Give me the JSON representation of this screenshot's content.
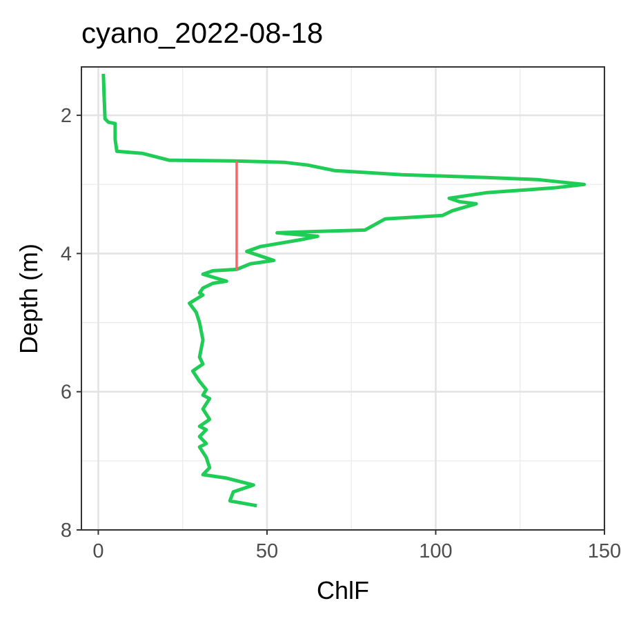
{
  "chart_data": {
    "type": "line",
    "title": "cyano_2022-08-18",
    "xlabel": "ChlF",
    "ylabel": "Depth (m)",
    "xlim": [
      -5,
      150
    ],
    "ylim": [
      8,
      1.3
    ],
    "y_reversed": true,
    "grid": true,
    "x_ticks": [
      0,
      50,
      100,
      150
    ],
    "x_tick_labels": [
      "0",
      "50",
      "100",
      "150"
    ],
    "y_ticks": [
      2,
      4,
      6,
      8
    ],
    "y_tick_labels": [
      "2",
      "4",
      "6",
      "8"
    ],
    "series": [
      {
        "color": "#1fcc55",
        "points": [
          [
            1.5,
            1.4
          ],
          [
            1.7,
            1.7
          ],
          [
            2.0,
            2.05
          ],
          [
            3.0,
            2.1
          ],
          [
            5.0,
            2.12
          ],
          [
            5.0,
            2.35
          ],
          [
            5.5,
            2.52
          ],
          [
            13,
            2.55
          ],
          [
            21,
            2.65
          ],
          [
            40,
            2.66
          ],
          [
            55,
            2.68
          ],
          [
            62,
            2.72
          ],
          [
            70,
            2.8
          ],
          [
            90,
            2.86
          ],
          [
            115,
            2.9
          ],
          [
            130,
            2.93
          ],
          [
            144,
            3.0
          ],
          [
            135,
            3.05
          ],
          [
            115,
            3.12
          ],
          [
            104,
            3.2
          ],
          [
            107,
            3.25
          ],
          [
            112,
            3.28
          ],
          [
            105,
            3.38
          ],
          [
            102,
            3.45
          ],
          [
            85,
            3.5
          ],
          [
            82,
            3.58
          ],
          [
            79,
            3.66
          ],
          [
            65,
            3.68
          ],
          [
            53,
            3.7
          ],
          [
            65,
            3.75
          ],
          [
            60,
            3.8
          ],
          [
            48,
            3.9
          ],
          [
            44,
            3.97
          ],
          [
            52,
            4.1
          ],
          [
            45,
            4.15
          ],
          [
            41,
            4.23
          ],
          [
            34,
            4.25
          ],
          [
            31,
            4.3
          ],
          [
            38,
            4.4
          ],
          [
            34,
            4.43
          ],
          [
            31,
            4.5
          ],
          [
            30,
            4.57
          ],
          [
            31,
            4.6
          ],
          [
            27,
            4.72
          ],
          [
            29,
            4.85
          ],
          [
            30,
            5.0
          ],
          [
            31,
            5.25
          ],
          [
            30,
            5.5
          ],
          [
            31,
            5.6
          ],
          [
            28,
            5.7
          ],
          [
            30,
            5.85
          ],
          [
            32,
            5.97
          ],
          [
            31,
            6.05
          ],
          [
            33,
            6.1
          ],
          [
            31,
            6.25
          ],
          [
            33,
            6.4
          ],
          [
            30,
            6.5
          ],
          [
            32,
            6.55
          ],
          [
            30,
            6.65
          ],
          [
            32,
            6.75
          ],
          [
            30,
            6.8
          ],
          [
            32,
            6.95
          ],
          [
            33,
            7.1
          ],
          [
            31,
            7.2
          ],
          [
            38,
            7.25
          ],
          [
            46,
            7.35
          ],
          [
            40,
            7.45
          ],
          [
            39,
            7.58
          ],
          [
            47,
            7.65
          ]
        ]
      },
      {
        "color": "#f0686a",
        "points": [
          [
            41,
            2.66
          ],
          [
            41,
            4.25
          ]
        ]
      }
    ]
  }
}
